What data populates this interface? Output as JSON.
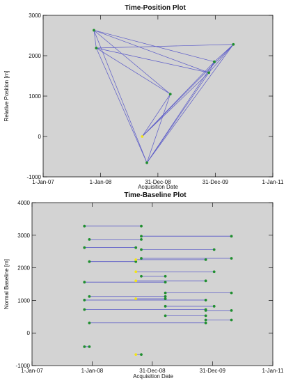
{
  "colors": {
    "background": "#d3d3d3",
    "frame": "#111111",
    "link": "#5a5ac8",
    "point": "#1f8f2f",
    "master": "#f2e418"
  },
  "chart_data": [
    {
      "type": "network",
      "title": "Time-Position Plot",
      "xlabel": "Acquisition Date",
      "ylabel": "Relative Position [m]",
      "xlim": [
        "2007-01-01",
        "2011-01-01"
      ],
      "ylim": [
        -1000,
        3000
      ],
      "xticks": [
        {
          "date": "2007-01-01",
          "label": "1-Jan-07"
        },
        {
          "date": "2008-01-01",
          "label": "1-Jan-08"
        },
        {
          "date": "2008-12-31",
          "label": "31-Dec-08"
        },
        {
          "date": "2009-12-31",
          "label": "31-Dec-09"
        },
        {
          "date": "2011-01-01",
          "label": "1-Jan-11"
        }
      ],
      "yticks": [
        -1000,
        0,
        1000,
        2000,
        3000
      ],
      "points": [
        {
          "id": "A",
          "date": "2007-11-20",
          "y": 2630,
          "master": false
        },
        {
          "id": "B",
          "date": "2007-12-05",
          "y": 2190,
          "master": false
        },
        {
          "id": "M",
          "date": "2008-09-22",
          "y": 0,
          "master": true
        },
        {
          "id": "C",
          "date": "2008-10-22",
          "y": -650,
          "master": false
        },
        {
          "id": "D",
          "date": "2009-03-20",
          "y": 1050,
          "master": false
        },
        {
          "id": "E",
          "date": "2009-11-20",
          "y": 1580,
          "master": false
        },
        {
          "id": "F",
          "date": "2009-12-25",
          "y": 1850,
          "master": false
        },
        {
          "id": "G",
          "date": "2010-04-25",
          "y": 2280,
          "master": false
        }
      ],
      "links": [
        [
          "A",
          "B"
        ],
        [
          "A",
          "F"
        ],
        [
          "A",
          "E"
        ],
        [
          "A",
          "C"
        ],
        [
          "A",
          "D"
        ],
        [
          "B",
          "G"
        ],
        [
          "B",
          "E"
        ],
        [
          "B",
          "D"
        ],
        [
          "B",
          "C"
        ],
        [
          "F",
          "G"
        ],
        [
          "E",
          "G"
        ],
        [
          "E",
          "F"
        ],
        [
          "G",
          "M"
        ],
        [
          "F",
          "M"
        ],
        [
          "D",
          "M"
        ],
        [
          "E",
          "M"
        ],
        [
          "C",
          "D"
        ],
        [
          "C",
          "E"
        ],
        [
          "C",
          "F"
        ],
        [
          "C",
          "G"
        ]
      ]
    },
    {
      "type": "baseline-pairs",
      "title": "Time-Baseline Plot",
      "xlabel": "Acquisition Date",
      "ylabel": "Normal Baseline [m]",
      "xlim": [
        "2007-01-01",
        "2011-01-01"
      ],
      "ylim": [
        -1000,
        4000
      ],
      "xticks": [
        {
          "date": "2007-01-01",
          "label": "1-Jan-07"
        },
        {
          "date": "2008-01-01",
          "label": "1-Jan-08"
        },
        {
          "date": "2008-12-31",
          "label": "31-Dec-08"
        },
        {
          "date": "2009-12-31",
          "label": "31-Dec-09"
        },
        {
          "date": "2011-01-01",
          "label": "1-Jan-11"
        }
      ],
      "yticks": [
        -1000,
        0,
        1000,
        2000,
        3000,
        4000
      ],
      "pairs": [
        {
          "start": "2007-11-15",
          "end": "2008-10-25",
          "y": 3280,
          "start_master": false
        },
        {
          "start": "2007-12-15",
          "end": "2008-10-25",
          "y": 2870,
          "start_master": false
        },
        {
          "start": "2008-10-25",
          "end": "2010-04-25",
          "y": 2970,
          "start_master": false
        },
        {
          "start": "2007-11-15",
          "end": "2008-09-22",
          "y": 2620,
          "start_master": false
        },
        {
          "start": "2008-10-25",
          "end": "2010-01-10",
          "y": 2560,
          "start_master": false
        },
        {
          "start": "2007-12-15",
          "end": "2008-09-22",
          "y": 2190,
          "start_master": false
        },
        {
          "start": "2008-09-22",
          "end": "2009-11-20",
          "y": 2250,
          "start_master": true
        },
        {
          "start": "2008-10-25",
          "end": "2010-04-25",
          "y": 2290,
          "start_master": false
        },
        {
          "start": "2008-09-22",
          "end": "2010-01-10",
          "y": 1880,
          "start_master": true
        },
        {
          "start": "2008-10-25",
          "end": "2009-03-20",
          "y": 1740,
          "start_master": false
        },
        {
          "start": "2007-11-15",
          "end": "2009-03-20",
          "y": 1560,
          "start_master": false
        },
        {
          "start": "2008-09-22",
          "end": "2009-11-20",
          "y": 1600,
          "start_master": true
        },
        {
          "start": "2009-03-20",
          "end": "2010-04-25",
          "y": 1230,
          "start_master": false
        },
        {
          "start": "2007-12-15",
          "end": "2009-03-20",
          "y": 1120,
          "start_master": false
        },
        {
          "start": "2008-09-22",
          "end": "2009-03-20",
          "y": 1050,
          "start_master": true
        },
        {
          "start": "2007-11-15",
          "end": "2009-11-20",
          "y": 1010,
          "start_master": false
        },
        {
          "start": "2009-03-20",
          "end": "2010-01-10",
          "y": 820,
          "start_master": false
        },
        {
          "start": "2007-11-15",
          "end": "2009-11-20",
          "y": 720,
          "start_master": false
        },
        {
          "start": "2009-11-20",
          "end": "2010-04-25",
          "y": 690,
          "start_master": false
        },
        {
          "start": "2009-03-20",
          "end": "2009-11-20",
          "y": 530,
          "start_master": false
        },
        {
          "start": "2009-11-20",
          "end": "2010-04-25",
          "y": 400,
          "start_master": false
        },
        {
          "start": "2007-12-15",
          "end": "2009-11-20",
          "y": 310,
          "start_master": false
        },
        {
          "start": "2007-11-15",
          "end": "2007-12-15",
          "y": -420,
          "start_master": false
        },
        {
          "start": "2008-09-22",
          "end": "2008-10-25",
          "y": -660,
          "start_master": true
        }
      ]
    }
  ]
}
